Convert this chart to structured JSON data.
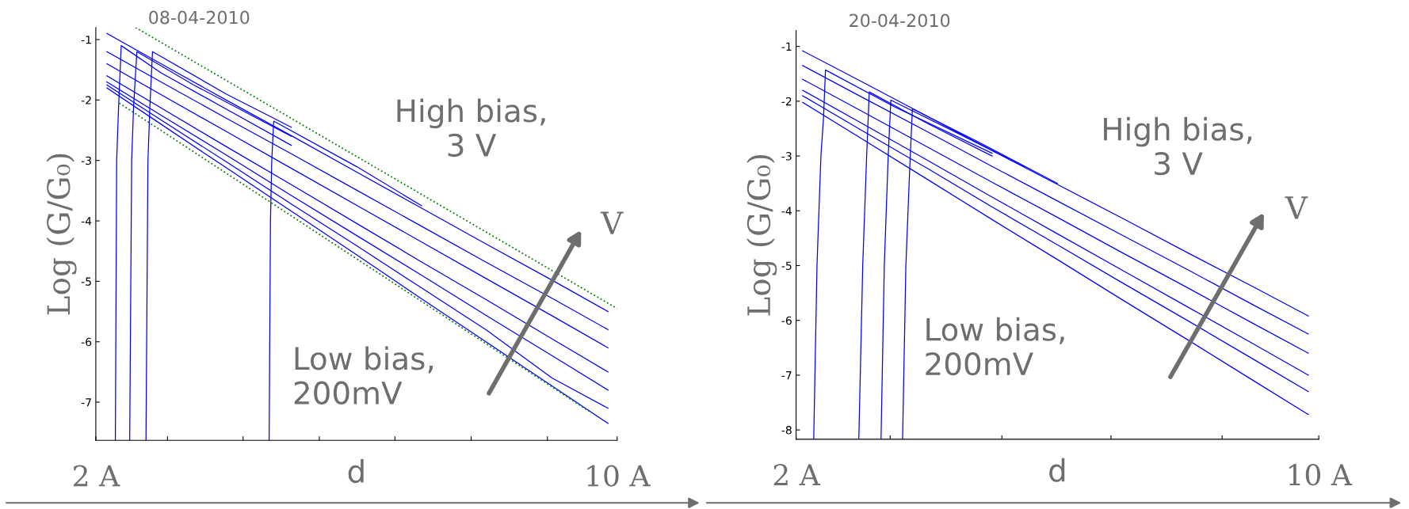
{
  "chart_data": [
    {
      "type": "line",
      "title": "08-04-2010",
      "xlabel": "d",
      "ylabel": "Log (G/G₀)",
      "xlim": [
        2,
        10
      ],
      "ylim": [
        -7.63,
        -0.8
      ],
      "xticks": [
        {
          "value": 2,
          "label": "2 A"
        },
        {
          "value": 3.1,
          "label": null
        },
        {
          "value": 4.26,
          "label": null
        },
        {
          "value": 5.43,
          "label": null
        },
        {
          "value": 6.59,
          "label": null
        },
        {
          "value": 7.76,
          "label": null
        },
        {
          "value": 8.93,
          "label": null
        },
        {
          "value": 10,
          "label": "10 A"
        }
      ],
      "yticks": [
        -7,
        -6,
        -5,
        -4,
        -3,
        -2,
        -1
      ],
      "annotations": [
        "High bias,\n3 V",
        "Low bias,\n200mV",
        "V"
      ],
      "series": [
        {
          "color": "#0000ff",
          "x": [
            2.17,
            3,
            4,
            5,
            6,
            7,
            8,
            9,
            9.86
          ],
          "values": [
            -0.9,
            -1.4,
            -2.0,
            -2.59,
            -3.19,
            -3.79,
            -4.39,
            -4.98,
            -5.5
          ]
        },
        {
          "color": "#0000ff",
          "x": [
            2.17,
            3,
            4,
            5,
            6,
            7,
            8,
            9,
            9.86
          ],
          "values": [
            -1.2,
            -1.7,
            -2.3,
            -2.89,
            -3.49,
            -4.09,
            -4.69,
            -5.28,
            -5.8
          ]
        },
        {
          "color": "#0000ff",
          "x": [
            2.17,
            3,
            4,
            5,
            6,
            7,
            8,
            9,
            9.86
          ],
          "values": [
            -1.4,
            -1.91,
            -2.52,
            -3.13,
            -3.74,
            -4.35,
            -4.96,
            -5.57,
            -6.1
          ]
        },
        {
          "color": "#0000ff",
          "x": [
            2.17,
            3,
            4,
            5,
            6,
            7,
            8,
            9,
            9.86
          ],
          "values": [
            -1.6,
            -2.13,
            -2.77,
            -3.4,
            -4.04,
            -4.68,
            -5.31,
            -5.95,
            -6.5
          ]
        },
        {
          "color": "#0000ff",
          "x": [
            2.17,
            3,
            4,
            5,
            6,
            7,
            8,
            9,
            9.86
          ],
          "values": [
            -1.7,
            -2.25,
            -2.91,
            -3.58,
            -4.24,
            -4.9,
            -5.57,
            -6.23,
            -6.8
          ]
        },
        {
          "color": "#0000ff",
          "x": [
            2.17,
            3,
            4,
            5,
            6,
            7,
            8,
            9,
            9.86
          ],
          "values": [
            -1.75,
            -2.33,
            -3.02,
            -3.72,
            -4.41,
            -5.11,
            -5.81,
            -6.6,
            -7.1
          ]
        },
        {
          "color": "#0000ff",
          "x": [
            2.17,
            3,
            4,
            5,
            6,
            7,
            8,
            9,
            9.86
          ],
          "values": [
            -1.8,
            -2.4,
            -3.12,
            -3.84,
            -4.56,
            -5.29,
            -6.01,
            -6.73,
            -7.35
          ]
        },
        {
          "color": "#0000ff",
          "x": [
            2.3,
            2.32,
            2.35,
            2.39,
            3.0,
            4.0,
            5.0
          ],
          "values": [
            -7.63,
            -3.0,
            -2.1,
            -1.1,
            -1.55,
            -2.15,
            -2.75
          ]
        },
        {
          "color": "#0000ff",
          "x": [
            2.52,
            2.55,
            2.58,
            2.63,
            3.5,
            5.0
          ],
          "values": [
            -7.63,
            -3.0,
            -2.1,
            -1.2,
            -1.75,
            -2.6
          ]
        },
        {
          "color": "#0000ff",
          "x": [
            2.77,
            2.8,
            2.83,
            2.87,
            4.0,
            5.0
          ],
          "values": [
            -7.63,
            -3.0,
            -2.1,
            -1.2,
            -1.9,
            -2.45
          ]
        },
        {
          "color": "#0000ff",
          "x": [
            4.66,
            4.68,
            4.7,
            4.73,
            6.0,
            7.0
          ],
          "values": [
            -7.63,
            -4.0,
            -3.0,
            -2.35,
            -3.1,
            -3.75
          ]
        },
        {
          "color": "#008000",
          "line_style": "dotted",
          "x": [
            2.61,
            10
          ],
          "values": [
            -0.8,
            -5.45
          ]
        },
        {
          "color": "#008000",
          "line_style": "dotted",
          "x": [
            2.36,
            9.57
          ],
          "values": [
            -2.05,
            -7.15
          ]
        }
      ]
    },
    {
      "type": "line",
      "title": "20-04-2010",
      "xlabel": "d",
      "ylabel": "Log (G/G₀)",
      "xlim": [
        2,
        10
      ],
      "ylim": [
        -8.17,
        -0.71
      ],
      "xticks": [
        {
          "value": 2,
          "label": "2 A"
        },
        {
          "value": 3.44,
          "label": null
        },
        {
          "value": 5.15,
          "label": null
        },
        {
          "value": 6.82,
          "label": null
        },
        {
          "value": 8.52,
          "label": null
        },
        {
          "value": 10,
          "label": "10 A"
        }
      ],
      "yticks": [
        -8,
        -7,
        -6,
        -5,
        -4,
        -3,
        -2,
        -1
      ],
      "annotations": [
        "High bias,\n3 V",
        "Low bias,\n200mV",
        "V"
      ],
      "series": [
        {
          "color": "#0000ff",
          "x": [
            2.1,
            3,
            4,
            5,
            6,
            7,
            8,
            9,
            9.84
          ],
          "values": [
            -1.08,
            -1.64,
            -2.27,
            -2.9,
            -3.52,
            -4.14,
            -4.77,
            -5.39,
            -5.92
          ]
        },
        {
          "color": "#0000ff",
          "x": [
            2.1,
            3,
            4,
            5,
            6,
            7,
            8,
            9,
            9.84
          ],
          "values": [
            -1.35,
            -1.92,
            -2.55,
            -3.19,
            -3.82,
            -4.45,
            -5.08,
            -5.72,
            -6.25
          ]
        },
        {
          "color": "#0000ff",
          "x": [
            2.1,
            3,
            4,
            5,
            6,
            7,
            8,
            9,
            9.84
          ],
          "values": [
            -1.6,
            -2.18,
            -2.83,
            -3.48,
            -4.12,
            -4.77,
            -5.41,
            -6.06,
            -6.6
          ]
        },
        {
          "color": "#0000ff",
          "x": [
            2.1,
            3,
            4,
            5,
            6,
            7,
            8,
            9,
            9.84
          ],
          "values": [
            -1.8,
            -2.4,
            -3.07,
            -3.75,
            -4.42,
            -5.09,
            -5.76,
            -6.43,
            -7.0
          ]
        },
        {
          "color": "#0000ff",
          "x": [
            2.1,
            3,
            4,
            5,
            6,
            7,
            8,
            9,
            9.84
          ],
          "values": [
            -1.9,
            -2.53,
            -3.22,
            -3.93,
            -4.62,
            -5.32,
            -6.01,
            -6.71,
            -7.3
          ]
        },
        {
          "color": "#0000ff",
          "x": [
            2.1,
            3,
            4,
            5,
            6,
            7,
            8,
            9,
            9.84
          ],
          "values": [
            -2.02,
            -2.68,
            -3.42,
            -4.16,
            -4.89,
            -5.63,
            -6.36,
            -7.1,
            -7.72
          ]
        },
        {
          "color": "#0000ff",
          "x": [
            2.27,
            2.32,
            2.38,
            2.42,
            2.45,
            3.5,
            5.0
          ],
          "values": [
            -8.17,
            -5.0,
            -3.0,
            -2.3,
            -1.43,
            -2.1,
            -2.95
          ]
        },
        {
          "color": "#0000ff",
          "x": [
            2.96,
            3.02,
            3.08,
            3.12,
            4.0,
            5.0
          ],
          "values": [
            -8.17,
            -5.0,
            -3.0,
            -1.83,
            -2.4,
            -3.0
          ]
        },
        {
          "color": "#0000ff",
          "x": [
            3.3,
            3.35,
            3.41,
            3.45,
            4.5,
            5.5
          ],
          "values": [
            -8.17,
            -5.0,
            -3.0,
            -1.98,
            -2.6,
            -3.2
          ]
        },
        {
          "color": "#0000ff",
          "x": [
            3.63,
            3.68,
            3.74,
            3.78,
            4.8,
            6.0
          ],
          "values": [
            -8.17,
            -5.0,
            -3.2,
            -2.14,
            -2.75,
            -3.5
          ]
        }
      ]
    }
  ]
}
